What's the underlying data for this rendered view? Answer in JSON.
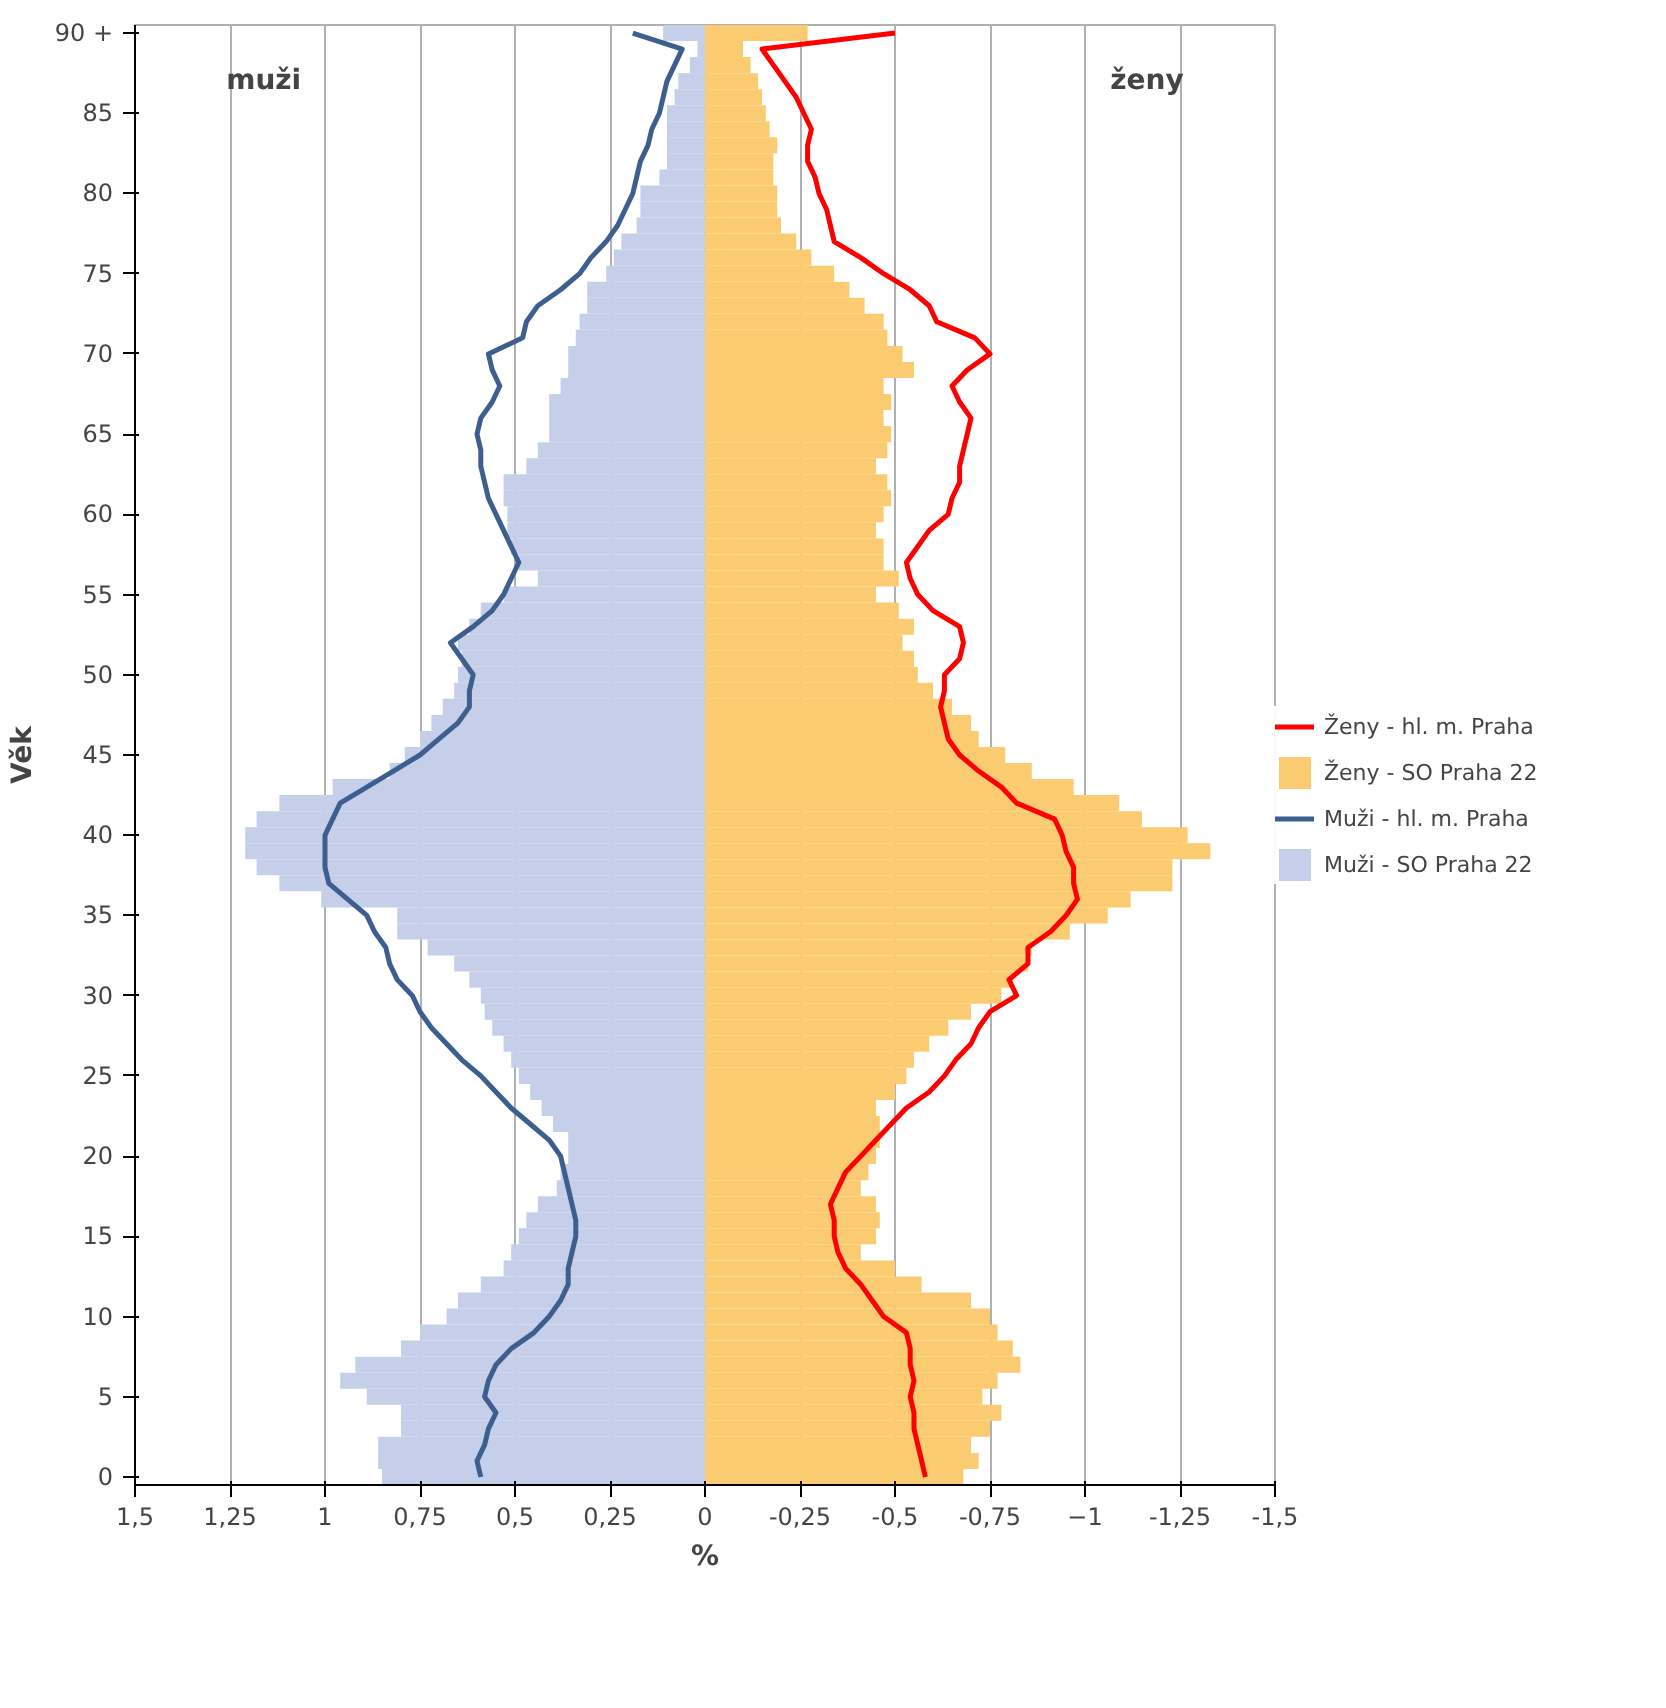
{
  "chart_data": {
    "type": "bar",
    "orientation": "horizontal",
    "stacked": true,
    "xlabel": "%",
    "ylabel": "Věk",
    "categories": [
      "90 +",
      null,
      null,
      null,
      null,
      "85",
      null,
      null,
      null,
      null,
      "80",
      null,
      null,
      null,
      null,
      "75",
      null,
      null,
      null,
      null,
      "70",
      null,
      null,
      null,
      null,
      "65",
      null,
      null,
      null,
      null,
      "60",
      null,
      null,
      null,
      null,
      "55",
      null,
      null,
      null,
      null,
      "50",
      null,
      null,
      null,
      null,
      "45",
      null,
      null,
      null,
      null,
      "40",
      null,
      null,
      null,
      null,
      "35",
      null,
      null,
      null,
      null,
      "30",
      null,
      null,
      null,
      null,
      "25",
      null,
      null,
      null,
      null,
      "20",
      null,
      null,
      null,
      null,
      "15",
      null,
      null,
      null,
      null,
      "10",
      null,
      null,
      null,
      null,
      "5",
      null,
      null,
      null,
      null,
      "0"
    ],
    "xlim": [
      1.5,
      -1.5
    ],
    "xticks": [
      {
        "value": 1.5,
        "label": "1,5"
      },
      {
        "value": 1.25,
        "label": "1,25"
      },
      1,
      {
        "value": 0.75,
        "label": "0,75"
      },
      {
        "value": 0.5,
        "label": "0,5"
      },
      {
        "value": 0.25,
        "label": "0,25"
      },
      0,
      {
        "value": -0.25,
        "label": "-0,25"
      },
      {
        "value": -0.5,
        "label": "-0,5"
      },
      {
        "value": -0.75,
        "label": "-0,75"
      },
      -1,
      {
        "value": -1.25,
        "label": "-1,25"
      },
      {
        "value": -1.5,
        "label": "-1,5"
      }
    ],
    "grid": "x",
    "legend": "right",
    "annotations": [
      "muži",
      "ženy"
    ],
    "series": [
      {
        "name": "Muži - SO Praha 22",
        "color": "#c5cfea",
        "values": [
          0.11,
          0.02,
          0.04,
          0.07,
          0.08,
          0.1,
          0.1,
          0.1,
          0.1,
          0.12,
          0.17,
          0.17,
          0.18,
          0.22,
          0.24,
          0.26,
          0.31,
          0.31,
          0.33,
          0.34,
          0.36,
          0.36,
          0.38,
          0.41,
          0.41,
          0.41,
          0.44,
          0.47,
          0.53,
          0.53,
          0.52,
          0.52,
          0.51,
          0.49,
          0.44,
          0.53,
          0.59,
          0.62,
          0.65,
          0.64,
          0.65,
          0.66,
          0.69,
          0.72,
          0.75,
          0.79,
          0.83,
          0.98,
          1.12,
          1.18,
          1.21,
          1.21,
          1.18,
          1.12,
          1.01,
          0.81,
          0.81,
          0.73,
          0.66,
          0.62,
          0.59,
          0.58,
          0.56,
          0.53,
          0.51,
          0.49,
          0.46,
          0.43,
          0.4,
          0.36,
          0.36,
          0.38,
          0.39,
          0.44,
          0.47,
          0.49,
          0.51,
          0.53,
          0.59,
          0.65,
          0.68,
          0.75,
          0.8,
          0.92,
          0.96,
          0.89,
          0.8,
          0.8,
          0.86,
          0.86,
          0.85
        ]
      },
      {
        "name": "Muži - hl. m. Praha",
        "type": "line",
        "color": "#3d5f8f",
        "values": [
          0.19,
          0.06,
          0.08,
          0.1,
          0.11,
          0.12,
          0.14,
          0.15,
          0.17,
          0.18,
          0.19,
          0.21,
          0.23,
          0.26,
          0.3,
          0.33,
          0.38,
          0.44,
          0.47,
          0.48,
          0.57,
          0.56,
          0.54,
          0.56,
          0.59,
          0.6,
          0.59,
          0.59,
          0.58,
          0.57,
          0.55,
          0.53,
          0.51,
          0.49,
          0.51,
          0.53,
          0.56,
          0.61,
          0.67,
          0.64,
          0.61,
          0.62,
          0.62,
          0.65,
          0.7,
          0.75,
          0.82,
          0.89,
          0.96,
          0.98,
          1.0,
          1.0,
          1.0,
          0.99,
          0.94,
          0.89,
          0.87,
          0.84,
          0.83,
          0.81,
          0.77,
          0.75,
          0.72,
          0.68,
          0.64,
          0.59,
          0.55,
          0.51,
          0.46,
          0.41,
          0.38,
          0.37,
          0.36,
          0.35,
          0.34,
          0.34,
          0.35,
          0.36,
          0.36,
          0.38,
          0.41,
          0.45,
          0.51,
          0.55,
          0.57,
          0.58,
          0.55,
          0.57,
          0.58,
          0.6,
          0.59
        ]
      },
      {
        "name": "Ženy - SO Praha 22",
        "color": "#fbcb72",
        "values": [
          -0.27,
          -0.1,
          -0.12,
          -0.14,
          -0.15,
          -0.16,
          -0.17,
          -0.19,
          -0.18,
          -0.18,
          -0.19,
          -0.19,
          -0.2,
          -0.24,
          -0.28,
          -0.34,
          -0.38,
          -0.42,
          -0.47,
          -0.48,
          -0.52,
          -0.55,
          -0.47,
          -0.49,
          -0.47,
          -0.49,
          -0.48,
          -0.45,
          -0.48,
          -0.49,
          -0.47,
          -0.45,
          -0.47,
          -0.47,
          -0.51,
          -0.45,
          -0.51,
          -0.55,
          -0.52,
          -0.55,
          -0.56,
          -0.6,
          -0.65,
          -0.7,
          -0.72,
          -0.79,
          -0.86,
          -0.97,
          -1.09,
          -1.15,
          -1.27,
          -1.33,
          -1.23,
          -1.23,
          -1.12,
          -1.06,
          -0.96,
          -0.86,
          -0.85,
          -0.81,
          -0.78,
          -0.7,
          -0.64,
          -0.59,
          -0.55,
          -0.53,
          -0.5,
          -0.45,
          -0.46,
          -0.46,
          -0.45,
          -0.43,
          -0.41,
          -0.45,
          -0.46,
          -0.45,
          -0.41,
          -0.5,
          -0.57,
          -0.7,
          -0.75,
          -0.77,
          -0.81,
          -0.83,
          -0.77,
          -0.73,
          -0.78,
          -0.75,
          -0.7,
          -0.72,
          -0.68
        ]
      },
      {
        "name": "Ženy - hl. m. Praha",
        "type": "line",
        "color": "#ff0000",
        "values": [
          -0.5,
          -0.15,
          -0.18,
          -0.21,
          -0.24,
          -0.26,
          -0.28,
          -0.27,
          -0.27,
          -0.29,
          -0.3,
          -0.32,
          -0.33,
          -0.34,
          -0.41,
          -0.47,
          -0.54,
          -0.59,
          -0.61,
          -0.71,
          -0.75,
          -0.69,
          -0.65,
          -0.67,
          -0.7,
          -0.69,
          -0.68,
          -0.67,
          -0.67,
          -0.65,
          -0.64,
          -0.59,
          -0.56,
          -0.53,
          -0.54,
          -0.56,
          -0.6,
          -0.67,
          -0.68,
          -0.67,
          -0.63,
          -0.63,
          -0.62,
          -0.63,
          -0.64,
          -0.67,
          -0.72,
          -0.78,
          -0.82,
          -0.92,
          -0.94,
          -0.95,
          -0.97,
          -0.97,
          -0.98,
          -0.95,
          -0.91,
          -0.85,
          -0.85,
          -0.8,
          -0.82,
          -0.75,
          -0.72,
          -0.7,
          -0.66,
          -0.63,
          -0.59,
          -0.53,
          -0.49,
          -0.45,
          -0.41,
          -0.37,
          -0.35,
          -0.33,
          -0.34,
          -0.34,
          -0.35,
          -0.37,
          -0.41,
          -0.44,
          -0.47,
          -0.53,
          -0.54,
          -0.54,
          -0.55,
          -0.54,
          -0.55,
          -0.55,
          -0.56,
          -0.57,
          -0.58
        ]
      }
    ]
  }
}
